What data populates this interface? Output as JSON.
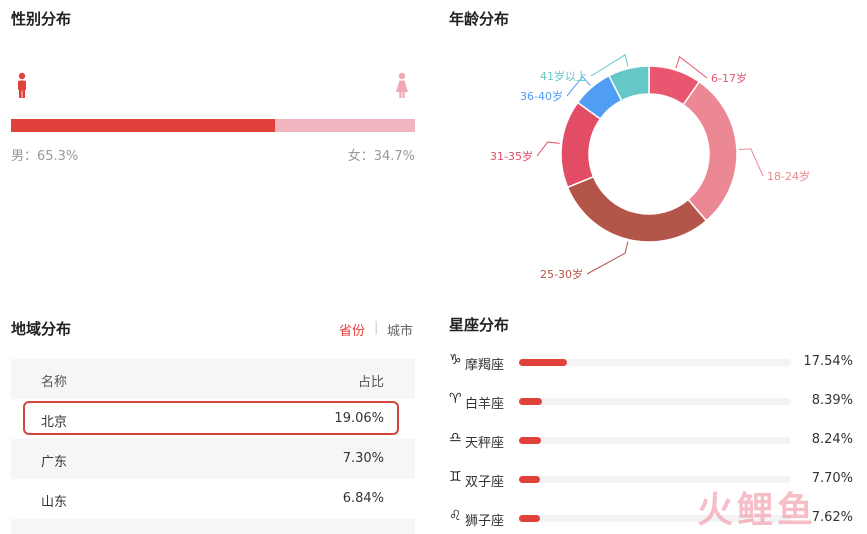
{
  "gender": {
    "title": "性别分布",
    "male_text": "男：65.3%",
    "female_text": "女：34.7%",
    "male_share": 65.3,
    "colors": {
      "male": "#e0413a",
      "female": "#f1b5c0"
    }
  },
  "age": {
    "title": "年龄分布"
  },
  "chart_data": {
    "type": "pie",
    "variant": "donut",
    "categories": [
      "6-17岁",
      "18-24岁",
      "25-30岁",
      "31-35岁",
      "36-40岁",
      "41岁以上"
    ],
    "values": [
      9,
      27,
      28,
      15,
      7,
      7
    ],
    "colors": [
      "#e9566f",
      "#ec8893",
      "#b45549",
      "#e24c65",
      "#4f9ef4",
      "#66c7c7"
    ]
  },
  "region": {
    "title": "地域分布",
    "toggle_province": "省份",
    "toggle_divider": "|",
    "toggle_city": "城市",
    "header": {
      "name": "名称",
      "share": "占比"
    },
    "rows": [
      {
        "name": "北京",
        "share": "19.06%"
      },
      {
        "name": "广东",
        "share": "7.30%"
      },
      {
        "name": "山东",
        "share": "6.84%"
      }
    ]
  },
  "zodiac": {
    "title": "星座分布",
    "items": [
      {
        "icon": "♑",
        "name": "摩羯座",
        "value": "17.54%",
        "share": 17.54
      },
      {
        "icon": "♈",
        "name": "白羊座",
        "value": "8.39%",
        "share": 8.39
      },
      {
        "icon": "♎",
        "name": "天秤座",
        "value": "8.24%",
        "share": 8.24
      },
      {
        "icon": "♊",
        "name": "双子座",
        "value": "7.70%",
        "share": 7.7
      },
      {
        "icon": "♌",
        "name": "狮子座",
        "value": "7.62%",
        "share": 7.62
      }
    ]
  },
  "watermark": {
    "text": "火鲤鱼"
  }
}
